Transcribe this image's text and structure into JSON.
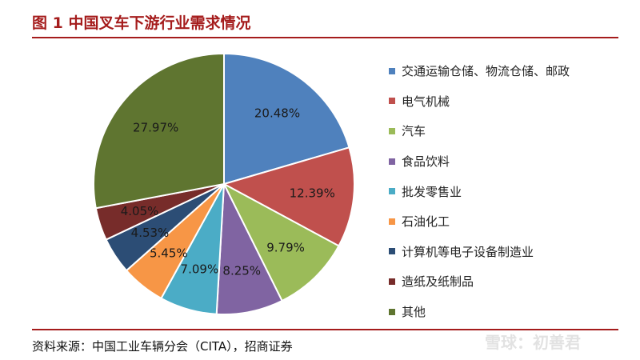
{
  "header": {
    "title": "图 1  中国叉车下游行业需求情况"
  },
  "footer": {
    "source": "资料来源：中国工业车辆分会（CITA），招商证券"
  },
  "watermark": {
    "text": "雪球：初善君"
  },
  "chart_data": {
    "type": "pie",
    "title": "图 1  中国叉车下游行业需求情况",
    "legend_position": "right",
    "slices": [
      {
        "name": "交通运输仓储、物流仓储、邮政",
        "value": 20.48,
        "label": "20.48%",
        "color": "#4f81bd"
      },
      {
        "name": "电气机械",
        "value": 12.39,
        "label": "12.39%",
        "color": "#c0504d"
      },
      {
        "name": "汽车",
        "value": 9.79,
        "label": "9.79%",
        "color": "#9bbb59"
      },
      {
        "name": "食品饮料",
        "value": 8.25,
        "label": "8.25%",
        "color": "#8064a2"
      },
      {
        "name": "批发零售业",
        "value": 7.09,
        "label": "7.09%",
        "color": "#4bacc6"
      },
      {
        "name": "石油化工",
        "value": 5.45,
        "label": "5.45%",
        "color": "#f79646"
      },
      {
        "name": "计算机等电子设备制造业",
        "value": 4.53,
        "label": "4.53%",
        "color": "#2c4d75"
      },
      {
        "name": "造纸及纸制品",
        "value": 4.05,
        "label": "4.05%",
        "color": "#772c2a"
      },
      {
        "name": "其他",
        "value": 27.97,
        "label": "27.97%",
        "color": "#5f7530"
      }
    ]
  }
}
